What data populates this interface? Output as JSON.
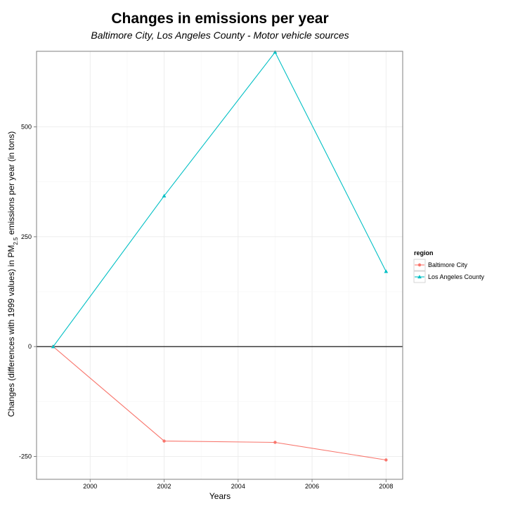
{
  "chart_data": {
    "type": "line",
    "title": "Changes in emissions per year",
    "subtitle": "Baltimore City, Los Angeles County - Motor vehicle sources",
    "xlabel": "Years",
    "ylabel": {
      "before": "Changes (differences with 1999 values) in PM",
      "subscript": "2.5",
      "after": " emissions per year (in tons)"
    },
    "xlim": [
      1998.55,
      2008.45
    ],
    "ylim": [
      -302,
      672
    ],
    "x_ticks": [
      2000,
      2002,
      2004,
      2006,
      2008
    ],
    "x_tick_labels": [
      "2000",
      "2002",
      "2004",
      "2006",
      "2008"
    ],
    "y_ticks": [
      -250,
      0,
      250,
      500
    ],
    "y_tick_labels": [
      "-250",
      "0",
      "250",
      "500"
    ],
    "reference_line_y": 0,
    "grid": true,
    "legend": {
      "title": "region",
      "placement": "right"
    },
    "series": [
      {
        "name": "Baltimore City",
        "color": "#F8766D",
        "marker": "circle",
        "x": [
          1999,
          2002,
          2005,
          2008
        ],
        "values": [
          0,
          -215,
          -218,
          -258
        ]
      },
      {
        "name": "Los Angeles County",
        "color": "#00BFC4",
        "marker": "triangle",
        "x": [
          1999,
          2002,
          2005,
          2008
        ],
        "values": [
          0,
          343,
          670,
          171
        ]
      }
    ]
  }
}
